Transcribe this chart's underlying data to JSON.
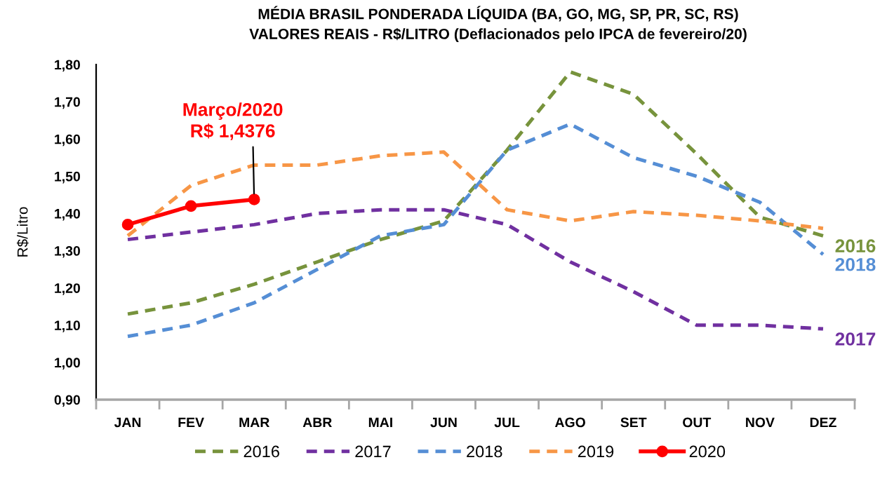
{
  "chart_data": {
    "type": "line",
    "title": "MÉDIA BRASIL PONDERADA LÍQUIDA (BA, GO, MG, SP, PR, SC, RS)",
    "subtitle": "VALORES REAIS - R$/LITRO (Deflacionados pelo IPCA de fevereiro/20)",
    "ylabel": "R$/Litro",
    "categories": [
      "JAN",
      "FEV",
      "MAR",
      "ABR",
      "MAI",
      "JUN",
      "JUL",
      "AGO",
      "SET",
      "OUT",
      "NOV",
      "DEZ"
    ],
    "series": [
      {
        "name": "2016",
        "color": "#77933c",
        "line_style": "dashed",
        "marker": "none",
        "values": [
          1.13,
          1.16,
          1.21,
          1.27,
          1.33,
          1.38,
          1.57,
          1.78,
          1.72,
          1.56,
          1.39,
          1.34
        ]
      },
      {
        "name": "2017",
        "color": "#7030a0",
        "line_style": "dashed",
        "marker": "none",
        "values": [
          1.33,
          1.35,
          1.37,
          1.4,
          1.41,
          1.41,
          1.37,
          1.27,
          1.19,
          1.1,
          1.1,
          1.09
        ]
      },
      {
        "name": "2018",
        "color": "#558ed5",
        "line_style": "dashed",
        "marker": "none",
        "values": [
          1.07,
          1.1,
          1.16,
          1.25,
          1.34,
          1.37,
          1.57,
          1.64,
          1.55,
          1.5,
          1.43,
          1.29
        ]
      },
      {
        "name": "2019",
        "color": "#f79646",
        "line_style": "dashed",
        "marker": "none",
        "values": [
          1.34,
          1.475,
          1.53,
          1.53,
          1.555,
          1.565,
          1.41,
          1.38,
          1.405,
          1.395,
          1.38,
          1.36
        ]
      },
      {
        "name": "2020",
        "color": "#ff0000",
        "line_style": "solid",
        "marker": "circle",
        "values": [
          1.37,
          1.42,
          1.4376,
          null,
          null,
          null,
          null,
          null,
          null,
          null,
          null,
          null
        ]
      }
    ],
    "ylim": [
      0.9,
      1.8
    ],
    "yticks": [
      {
        "value": 0.9,
        "label": "0,90"
      },
      {
        "value": 1.0,
        "label": "1,00"
      },
      {
        "value": 1.1,
        "label": "1,10"
      },
      {
        "value": 1.2,
        "label": "1,20"
      },
      {
        "value": 1.3,
        "label": "1,30"
      },
      {
        "value": 1.4,
        "label": "1,40"
      },
      {
        "value": 1.5,
        "label": "1,50"
      },
      {
        "value": 1.6,
        "label": "1,60"
      },
      {
        "value": 1.7,
        "label": "1,70"
      },
      {
        "value": 1.8,
        "label": "1,80"
      }
    ],
    "annotations": [
      {
        "text": "Março/2020\nR$ 1,4376",
        "x": "MAR",
        "y": 1.4376
      },
      {
        "text": "2016",
        "x": "DEZ",
        "y": 1.34
      },
      {
        "text": "2018",
        "x": "DEZ",
        "y": 1.29
      },
      {
        "text": "2017",
        "x": "DEZ",
        "y": 1.09
      }
    ],
    "grid": false,
    "legend": "bottom"
  }
}
